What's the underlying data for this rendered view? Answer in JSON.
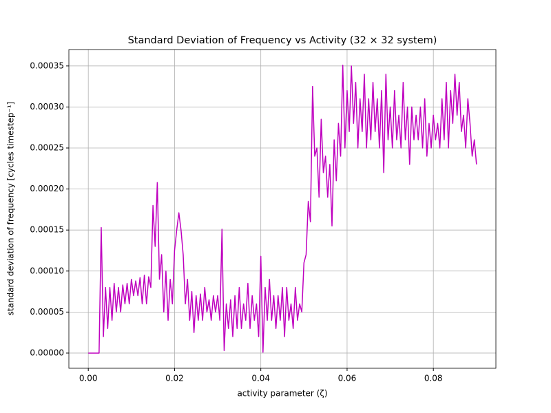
{
  "chart_data": {
    "type": "line",
    "title": "Standard Deviation of Frequency vs Activity (32 × 32 system)",
    "xlabel": "activity parameter (ζ)",
    "ylabel": "standard deviation of frequency [cycles timestep⁻¹]",
    "xlim": [
      -0.0045,
      0.0945
    ],
    "ylim": [
      -1.85e-05,
      0.00037
    ],
    "xticks": [
      {
        "value": 0,
        "label": "0.00"
      },
      {
        "value": 0.02,
        "label": "0.02"
      },
      {
        "value": 0.04,
        "label": "0.04"
      },
      {
        "value": 0.06,
        "label": "0.06"
      },
      {
        "value": 0.08,
        "label": "0.08"
      }
    ],
    "yticks": [
      {
        "value": 0,
        "label": "0.00000"
      },
      {
        "value": 5e-05,
        "label": "0.00005"
      },
      {
        "value": 0.0001,
        "label": "0.00010"
      },
      {
        "value": 0.00015,
        "label": "0.00015"
      },
      {
        "value": 0.0002,
        "label": "0.00020"
      },
      {
        "value": 0.00025,
        "label": "0.00025"
      },
      {
        "value": 0.0003,
        "label": "0.00030"
      },
      {
        "value": 0.00035,
        "label": "0.00035"
      }
    ],
    "grid": true,
    "x": [
      0,
      0.0005,
      0.001,
      0.0015,
      0.002,
      0.0025,
      0.003,
      0.0035,
      0.004,
      0.0045,
      0.005,
      0.0055,
      0.006,
      0.0065,
      0.007,
      0.0075,
      0.008,
      0.0085,
      0.009,
      0.0095,
      0.01,
      0.0105,
      0.011,
      0.0115,
      0.012,
      0.0125,
      0.013,
      0.0135,
      0.014,
      0.0145,
      0.015,
      0.0155,
      0.016,
      0.0165,
      0.017,
      0.0175,
      0.018,
      0.0185,
      0.019,
      0.0195,
      0.02,
      0.0205,
      0.021,
      0.0215,
      0.022,
      0.0225,
      0.023,
      0.0235,
      0.024,
      0.0245,
      0.025,
      0.0255,
      0.026,
      0.0265,
      0.027,
      0.0275,
      0.028,
      0.0285,
      0.029,
      0.0295,
      0.03,
      0.0305,
      0.031,
      0.0315,
      0.032,
      0.0325,
      0.033,
      0.0335,
      0.034,
      0.0345,
      0.035,
      0.0355,
      0.036,
      0.0365,
      0.037,
      0.0375,
      0.038,
      0.0385,
      0.039,
      0.0395,
      0.04,
      0.0405,
      0.041,
      0.0415,
      0.042,
      0.0425,
      0.043,
      0.0435,
      0.044,
      0.0445,
      0.045,
      0.0455,
      0.046,
      0.0465,
      0.047,
      0.0475,
      0.048,
      0.0485,
      0.049,
      0.0495,
      0.05,
      0.0505,
      0.051,
      0.0515,
      0.052,
      0.0525,
      0.053,
      0.0535,
      0.054,
      0.0545,
      0.055,
      0.0555,
      0.056,
      0.0565,
      0.057,
      0.0575,
      0.058,
      0.0585,
      0.059,
      0.0595,
      0.06,
      0.0605,
      0.061,
      0.0615,
      0.062,
      0.0625,
      0.063,
      0.0635,
      0.064,
      0.0645,
      0.065,
      0.0655,
      0.066,
      0.0665,
      0.067,
      0.0675,
      0.068,
      0.0685,
      0.069,
      0.0695,
      0.07,
      0.0705,
      0.071,
      0.0715,
      0.072,
      0.0725,
      0.073,
      0.0735,
      0.074,
      0.0745,
      0.075,
      0.0755,
      0.076,
      0.0765,
      0.077,
      0.0775,
      0.078,
      0.0785,
      0.079,
      0.0795,
      0.08,
      0.0805,
      0.081,
      0.0815,
      0.082,
      0.0825,
      0.083,
      0.0835,
      0.084,
      0.0845,
      0.085,
      0.0855,
      0.086,
      0.0865,
      0.087,
      0.0875,
      0.088,
      0.0885,
      0.089,
      0.0895,
      0.09
    ],
    "series": [
      {
        "color": "#bf00bf",
        "values": [
          0,
          0,
          0,
          0,
          0,
          0,
          0.000153,
          2e-05,
          8e-05,
          3e-05,
          8e-05,
          4e-05,
          8.5e-05,
          5e-05,
          8e-05,
          5e-05,
          8.3e-05,
          6e-05,
          8.5e-05,
          6e-05,
          9e-05,
          7e-05,
          8.8e-05,
          7e-05,
          9.2e-05,
          6e-05,
          9.5e-05,
          6e-05,
          9.3e-05,
          8e-05,
          0.00018,
          0.00013,
          0.000208,
          9e-05,
          0.00012,
          5e-05,
          0.0001,
          4e-05,
          9e-05,
          6e-05,
          0.000125,
          0.00015,
          0.000171,
          0.00015,
          0.00012,
          6e-05,
          9e-05,
          4e-05,
          7.5e-05,
          2.5e-05,
          7e-05,
          4e-05,
          7.2e-05,
          4e-05,
          8e-05,
          5e-05,
          6.5e-05,
          4e-05,
          7e-05,
          5e-05,
          7e-05,
          4e-05,
          0.000151,
          3e-06,
          6e-05,
          3e-05,
          6.5e-05,
          2e-05,
          7e-05,
          3e-05,
          8e-05,
          3e-05,
          6e-05,
          4e-05,
          8.5e-05,
          3e-05,
          7e-05,
          4e-05,
          6e-05,
          2e-05,
          0.000118,
          1e-06,
          8e-05,
          4e-05,
          9e-05,
          4e-05,
          7e-05,
          3e-05,
          7e-05,
          4e-05,
          8e-05,
          2e-05,
          8e-05,
          4e-05,
          6e-05,
          3e-05,
          8e-05,
          4e-05,
          6e-05,
          5e-05,
          0.00011,
          0.00012,
          0.000185,
          0.00016,
          0.000325,
          0.00024,
          0.00025,
          0.00019,
          0.000285,
          0.00022,
          0.00024,
          0.00019,
          0.00023,
          0.000155,
          0.00026,
          0.00021,
          0.00028,
          0.00024,
          0.000351,
          0.00025,
          0.00032,
          0.00027,
          0.00035,
          0.00028,
          0.00033,
          0.00025,
          0.00031,
          0.00027,
          0.00034,
          0.00025,
          0.00031,
          0.00026,
          0.00033,
          0.00027,
          0.00031,
          0.00025,
          0.00032,
          0.00022,
          0.00034,
          0.00026,
          0.0003,
          0.00025,
          0.00032,
          0.00026,
          0.00029,
          0.00025,
          0.00033,
          0.00026,
          0.0003,
          0.00023,
          0.0003,
          0.00026,
          0.00029,
          0.00026,
          0.0003,
          0.00025,
          0.00031,
          0.00024,
          0.00028,
          0.00025,
          0.00029,
          0.00026,
          0.00028,
          0.00025,
          0.00031,
          0.00026,
          0.00033,
          0.00025,
          0.00032,
          0.00028,
          0.00034,
          0.00029,
          0.00033,
          0.00027,
          0.00029,
          0.00025,
          0.00031,
          0.00028,
          0.00024,
          0.00026,
          0.00023
        ]
      }
    ]
  }
}
